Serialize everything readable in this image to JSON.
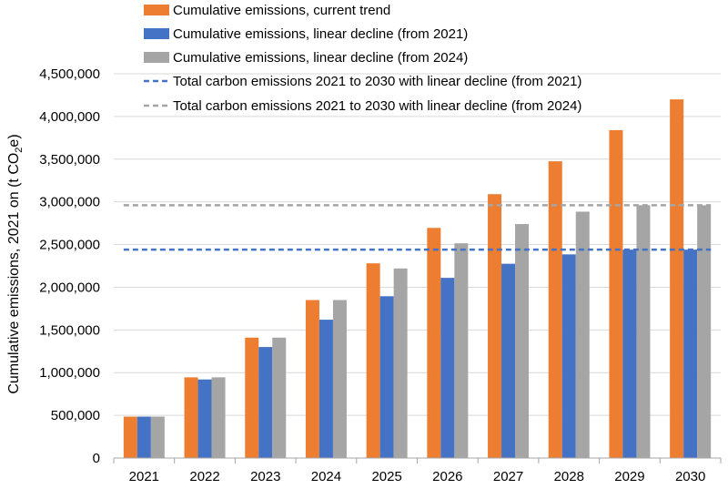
{
  "chart_data": {
    "type": "bar",
    "title": "",
    "xlabel": "",
    "ylabel": {
      "prefix": "Cumulative emissions, 2021 on (t CO",
      "sub": "2",
      "suffix": "e)"
    },
    "ylim": [
      0,
      4500000
    ],
    "yticks": [
      0,
      500000,
      1000000,
      1500000,
      2000000,
      2500000,
      3000000,
      3500000,
      4000000,
      4500000
    ],
    "ytick_labels": [
      "0",
      "500,000",
      "1,000,000",
      "1,500,000",
      "2,000,000",
      "2,500,000",
      "3,000,000",
      "3,500,000",
      "4,000,000",
      "4,500,000"
    ],
    "grid": true,
    "legend_position": "top",
    "categories": [
      "2021",
      "2022",
      "2023",
      "2024",
      "2025",
      "2026",
      "2027",
      "2028",
      "2029",
      "2030"
    ],
    "series": [
      {
        "name": "Cumulative emissions, current trend",
        "color": "#ED7D31",
        "values": [
          485000,
          945000,
          1410000,
          1850000,
          2280000,
          2695000,
          3090000,
          3475000,
          3840000,
          4200000
        ]
      },
      {
        "name": "Cumulative emissions, linear decline (from 2021)",
        "color": "#4472C4",
        "values": [
          485000,
          920000,
          1300000,
          1620000,
          1895000,
          2110000,
          2275000,
          2385000,
          2440000,
          2440000
        ]
      },
      {
        "name": "Cumulative emissions, linear decline (from 2024)",
        "color": "#A5A5A5",
        "values": [
          485000,
          945000,
          1410000,
          1850000,
          2220000,
          2515000,
          2740000,
          2885000,
          2960000,
          2960000
        ]
      }
    ],
    "reference_lines": [
      {
        "name": "Total carbon emissions 2021 to 2030 with linear decline (from 2021)",
        "color": "#4472C4",
        "value": 2440000
      },
      {
        "name": "Total carbon emissions 2021 to 2030 with linear decline (from 2024)",
        "color": "#A5A5A5",
        "value": 2960000
      }
    ]
  }
}
